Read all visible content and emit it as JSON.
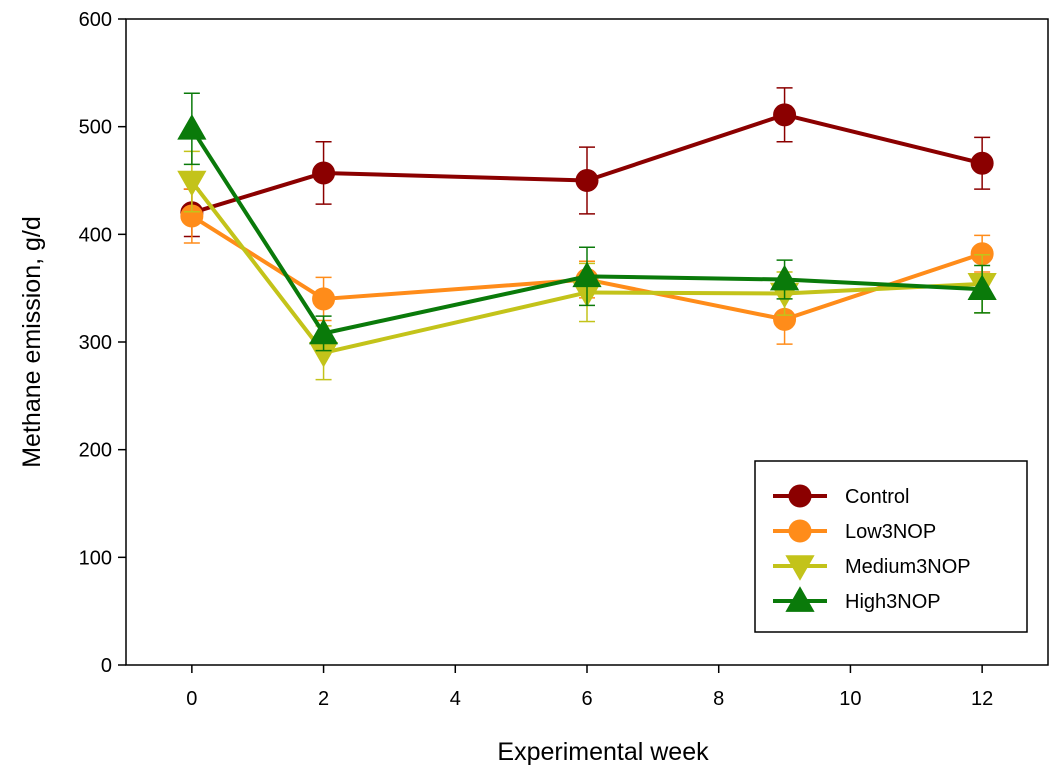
{
  "chart_data": {
    "type": "line",
    "title": "",
    "xlabel": "Experimental week",
    "ylabel": "Methane emission, g/d",
    "xlim": [
      -1,
      13
    ],
    "ylim": [
      0,
      600
    ],
    "xticks": [
      0,
      2,
      4,
      6,
      8,
      10,
      12
    ],
    "yticks": [
      0,
      100,
      200,
      300,
      400,
      500,
      600
    ],
    "grid": false,
    "legend_position": "bottom-right",
    "series": [
      {
        "name": "Control",
        "color": "#8b0000",
        "marker": "circle",
        "x": [
          0,
          2,
          6,
          9,
          12
        ],
        "y": [
          420,
          457,
          450,
          511,
          466
        ],
        "err": [
          22,
          29,
          31,
          25,
          24
        ]
      },
      {
        "name": "Low3NOP",
        "color": "#ff8c1a",
        "marker": "circle",
        "x": [
          0,
          2,
          6,
          9,
          12
        ],
        "y": [
          417,
          340,
          358,
          321,
          382
        ],
        "err": [
          25,
          20,
          17,
          23,
          17
        ]
      },
      {
        "name": "Medium3NOP",
        "color": "#c3c31a",
        "marker": "triangle-down",
        "x": [
          0,
          2,
          6,
          9,
          12
        ],
        "y": [
          449,
          290,
          346,
          345,
          354
        ],
        "err": [
          28,
          25,
          27,
          20,
          27
        ]
      },
      {
        "name": "High3NOP",
        "color": "#0a7a0a",
        "marker": "triangle-up",
        "x": [
          0,
          2,
          6,
          9,
          12
        ],
        "y": [
          498,
          308,
          361,
          358,
          349
        ],
        "err": [
          33,
          16,
          27,
          18,
          22
        ]
      }
    ]
  }
}
